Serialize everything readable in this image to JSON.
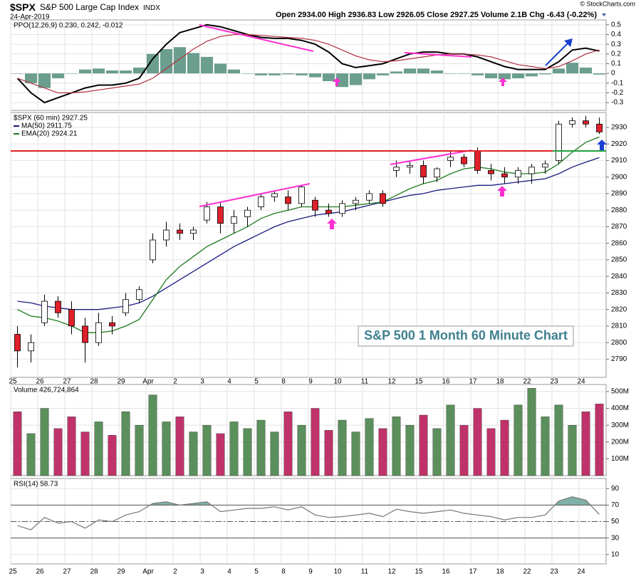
{
  "header": {
    "symbol": "$SPX",
    "name": "S&P 500 Large Cap Index",
    "exchange": "INDX",
    "date": "24-Apr-2019",
    "quote": "Open 2934.00 High 2936.83 Low 2926.05 Close 2927.25 Volume 2.1B Chg -6.43 (-0.22%)",
    "credit": "© StockCharts.com"
  },
  "chart_data": [
    {
      "type": "line_histogram",
      "legend": "PPO(12,26,9) 0.230, 0.242, -0.012",
      "ylim": [
        -0.38,
        0.55
      ],
      "yticks": [
        0.5,
        0.4,
        0.3,
        0.2,
        0.1,
        0.0,
        -0.1,
        -0.2,
        -0.3
      ],
      "series": [
        {
          "kind": "line",
          "color": "#000000",
          "values": [
            -0.05,
            -0.2,
            -0.3,
            -0.25,
            -0.2,
            -0.15,
            -0.12,
            -0.12,
            -0.1,
            -0.05,
            0.15,
            0.3,
            0.42,
            0.46,
            0.5,
            0.48,
            0.44,
            0.4,
            0.37,
            0.36,
            0.36,
            0.34,
            0.3,
            0.22,
            0.1,
            0.06,
            0.08,
            0.1,
            0.15,
            0.2,
            0.22,
            0.22,
            0.2,
            0.2,
            0.17,
            0.12,
            0.07,
            0.04,
            0.04,
            0.04,
            0.12,
            0.24,
            0.26,
            0.23
          ]
        },
        {
          "kind": "line",
          "color": "#b03040",
          "values": [
            -0.05,
            -0.1,
            -0.15,
            -0.2,
            -0.2,
            -0.19,
            -0.17,
            -0.15,
            -0.13,
            -0.11,
            -0.05,
            0.05,
            0.15,
            0.25,
            0.33,
            0.38,
            0.4,
            0.4,
            0.39,
            0.38,
            0.37,
            0.36,
            0.34,
            0.3,
            0.24,
            0.18,
            0.14,
            0.12,
            0.13,
            0.15,
            0.17,
            0.19,
            0.2,
            0.2,
            0.19,
            0.17,
            0.13,
            0.09,
            0.07,
            0.05,
            0.07,
            0.13,
            0.2,
            0.242
          ]
        },
        {
          "kind": "histogram",
          "color": "#6b9e8e",
          "values": [
            0,
            -0.1,
            -0.15,
            -0.05,
            0,
            0.04,
            0.05,
            0.03,
            0.03,
            0.06,
            0.2,
            0.25,
            0.27,
            0.21,
            0.17,
            0.1,
            0.04,
            0,
            -0.02,
            -0.02,
            -0.01,
            -0.02,
            -0.04,
            -0.08,
            -0.14,
            -0.12,
            -0.06,
            -0.02,
            0.02,
            0.05,
            0.05,
            0.03,
            0,
            0,
            -0.02,
            -0.05,
            -0.06,
            -0.05,
            -0.03,
            -0.01,
            0.05,
            0.11,
            0.06,
            -0.012
          ]
        }
      ]
    },
    {
      "type": "candlestick",
      "legend": "$SPX (60 min) 2927.25",
      "categories": [
        "25",
        null,
        "26",
        null,
        "27",
        null,
        "28",
        null,
        "29",
        null,
        "Apr",
        null,
        "2",
        null,
        "3",
        null,
        "4",
        null,
        "5",
        null,
        "8",
        null,
        "9",
        null,
        "10",
        null,
        "11",
        null,
        "12",
        null,
        "15",
        null,
        "16",
        null,
        "17",
        null,
        "18",
        null,
        "22",
        null,
        "23",
        null,
        "24",
        null
      ],
      "open": [
        2805,
        2795,
        2812,
        2825,
        2820,
        2810,
        2800,
        2812,
        2818,
        2826,
        2850,
        2862,
        2868,
        2866,
        2874,
        2882,
        2872,
        2876,
        2882,
        2888,
        2888,
        2884,
        2886,
        2880,
        2878,
        2884,
        2886,
        2890,
        2904,
        2906,
        2907,
        2900,
        2910,
        2912,
        2916,
        2904,
        2902,
        2900,
        2902,
        2906,
        2910,
        2932,
        2934,
        2932
      ],
      "high": [
        2810,
        2805,
        2829,
        2828,
        2825,
        2815,
        2818,
        2816,
        2830,
        2834,
        2866,
        2873,
        2872,
        2870,
        2885,
        2885,
        2880,
        2882,
        2890,
        2892,
        2892,
        2895,
        2888,
        2884,
        2886,
        2888,
        2892,
        2892,
        2910,
        2910,
        2910,
        2906,
        2916,
        2914,
        2918,
        2908,
        2906,
        2906,
        2908,
        2910,
        2934,
        2936,
        2937,
        2936
      ],
      "low": [
        2785,
        2788,
        2810,
        2815,
        2805,
        2788,
        2798,
        2805,
        2816,
        2824,
        2848,
        2858,
        2862,
        2862,
        2872,
        2866,
        2866,
        2870,
        2880,
        2885,
        2880,
        2882,
        2876,
        2876,
        2876,
        2880,
        2884,
        2882,
        2900,
        2902,
        2896,
        2897,
        2906,
        2906,
        2902,
        2898,
        2896,
        2896,
        2896,
        2902,
        2908,
        2930,
        2930,
        2926
      ],
      "close": [
        2795,
        2800,
        2825,
        2818,
        2810,
        2800,
        2812,
        2810,
        2826,
        2832,
        2862,
        2868,
        2866,
        2868,
        2882,
        2872,
        2876,
        2880,
        2888,
        2890,
        2884,
        2894,
        2880,
        2878,
        2884,
        2886,
        2890,
        2884,
        2906,
        2907,
        2900,
        2905,
        2912,
        2908,
        2904,
        2902,
        2900,
        2904,
        2906,
        2908,
        2932,
        2934,
        2932,
        2927.25
      ],
      "up_color": "#ffffff",
      "down_color": "#e0202a",
      "series": [
        {
          "name": "MA(50) 2911.75",
          "color": "#1a1a80",
          "values": [
            2825,
            2824,
            2822,
            2821,
            2820,
            2820,
            2820,
            2821,
            2822,
            2824,
            2828,
            2833,
            2838,
            2843,
            2848,
            2853,
            2858,
            2862,
            2866,
            2870,
            2873,
            2875,
            2877,
            2878,
            2879,
            2881,
            2883,
            2885,
            2887,
            2889,
            2890,
            2892,
            2893,
            2894,
            2895,
            2895,
            2896,
            2897,
            2898,
            2899,
            2902,
            2906,
            2909,
            2911.75
          ]
        },
        {
          "name": "EMA(20) 2924.21",
          "color": "#1e7a1e",
          "values": [
            2820,
            2816,
            2815,
            2813,
            2810,
            2806,
            2806,
            2807,
            2810,
            2814,
            2826,
            2838,
            2846,
            2852,
            2858,
            2862,
            2866,
            2870,
            2875,
            2878,
            2880,
            2882,
            2882,
            2882,
            2882,
            2883,
            2884,
            2885,
            2889,
            2893,
            2896,
            2898,
            2902,
            2905,
            2906,
            2905,
            2903,
            2902,
            2902,
            2903,
            2908,
            2915,
            2921,
            2924.21
          ]
        }
      ],
      "annotation": "S&P 500 1 Month 60 Minute Chart",
      "ylim": [
        2779,
        2939
      ],
      "yticks": [
        2930,
        2920,
        2910,
        2900,
        2890,
        2880,
        2870,
        2860,
        2850,
        2840,
        2830,
        2820,
        2810,
        2800,
        2790
      ]
    },
    {
      "type": "bar",
      "legend": "Volume 426,724,864",
      "up_color": "#5b8f5b",
      "down_color": "#c0326a",
      "values": [
        380000000,
        250000000,
        400000000,
        280000000,
        350000000,
        260000000,
        320000000,
        240000000,
        380000000,
        300000000,
        480000000,
        320000000,
        350000000,
        260000000,
        300000000,
        250000000,
        320000000,
        280000000,
        330000000,
        260000000,
        380000000,
        300000000,
        400000000,
        270000000,
        330000000,
        260000000,
        340000000,
        280000000,
        350000000,
        300000000,
        360000000,
        280000000,
        420000000,
        300000000,
        400000000,
        280000000,
        330000000,
        420000000,
        520000000,
        350000000,
        420000000,
        300000000,
        380000000,
        426724864
      ],
      "ylim": [
        0,
        542000000
      ],
      "yticks": [
        {
          "value": 500000000,
          "label": "500M"
        },
        {
          "value": 400000000,
          "label": "400M"
        },
        {
          "value": 300000000,
          "label": "300M"
        },
        {
          "value": 200000000,
          "label": "200M"
        },
        {
          "value": 100000000,
          "label": "100M"
        }
      ]
    },
    {
      "type": "line",
      "legend": "RSI(14) 58.73",
      "color": "#777777",
      "fill_color": "#7fb0a8",
      "values": [
        45,
        40,
        55,
        48,
        50,
        42,
        52,
        50,
        58,
        62,
        72,
        74,
        70,
        72,
        74,
        62,
        64,
        66,
        66,
        68,
        64,
        68,
        58,
        55,
        56,
        58,
        60,
        56,
        65,
        62,
        60,
        62,
        64,
        60,
        58,
        56,
        52,
        55,
        55,
        58,
        75,
        80,
        76,
        58.73
      ],
      "ylim": [
        -1.4,
        102.3
      ],
      "yticks": [
        90,
        70,
        50,
        30,
        10
      ],
      "overbought": 70,
      "midline": 50,
      "oversold": 30
    }
  ]
}
